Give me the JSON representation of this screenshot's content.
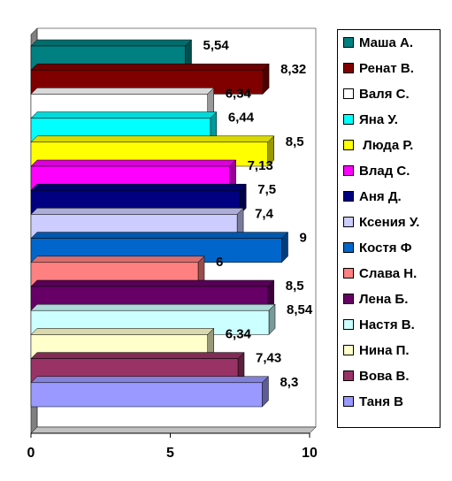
{
  "chart_data": {
    "type": "bar",
    "orientation": "horizontal",
    "style": "3d",
    "xlim": [
      0,
      10
    ],
    "xticks": [
      "0",
      "5",
      "10"
    ],
    "grid": false,
    "legend_position": "right",
    "series": [
      {
        "name": "Маша А.",
        "value": 5.54,
        "label": "5,54",
        "color": "#008080"
      },
      {
        "name": "Ренат В.",
        "value": 8.32,
        "label": "8,32",
        "color": "#800000"
      },
      {
        "name": "Валя С.",
        "value": 6.34,
        "label": "6,34",
        "color": "#ffffff"
      },
      {
        "name": "Яна У.",
        "value": 6.44,
        "label": "6,44",
        "color": "#00ffff"
      },
      {
        "name": " Люда Р.",
        "value": 8.5,
        "label": "8,5",
        "color": "#ffff00"
      },
      {
        "name": "Влад С.",
        "value": 7.13,
        "label": "7,13",
        "color": "#ff00ff"
      },
      {
        "name": "Аня Д.",
        "value": 7.5,
        "label": "7,5",
        "color": "#000080"
      },
      {
        "name": "Ксения У.",
        "value": 7.4,
        "label": "7,4",
        "color": "#ccccff"
      },
      {
        "name": "Костя Ф",
        "value": 9,
        "label": "9",
        "color": "#0066cc"
      },
      {
        "name": "Слава Н.",
        "value": 6,
        "label": "6",
        "color": "#ff8080"
      },
      {
        "name": "Лена Б.",
        "value": 8.5,
        "label": "8,5",
        "color": "#660066"
      },
      {
        "name": "Настя В.",
        "value": 8.54,
        "label": "8,54",
        "color": "#ccffff"
      },
      {
        "name": "Нина П.",
        "value": 6.34,
        "label": "6,34",
        "color": "#ffffcc"
      },
      {
        "name": "Вова В.",
        "value": 7.43,
        "label": "7,43",
        "color": "#993366"
      },
      {
        "name": "Таня В",
        "value": 8.3,
        "label": "8,3",
        "color": "#9999ff"
      }
    ]
  }
}
